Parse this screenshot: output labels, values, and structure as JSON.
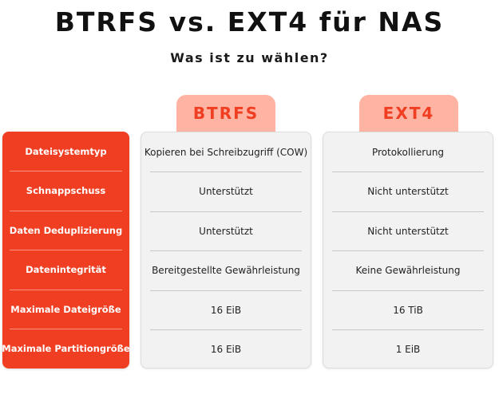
{
  "header": {
    "title": "BTRFS vs. EXT4 für NAS",
    "subtitle": "Was ist zu wählen?"
  },
  "columns": [
    {
      "label": "BTRFS",
      "color": "#ef3e22",
      "background": "#ffb3a3"
    },
    {
      "label": "EXT4",
      "color": "#ef3e22",
      "background": "#ffb3a3"
    }
  ],
  "rows": [
    {
      "label": "Dateisystemtyp",
      "btrfs": "Kopieren bei Schreibzugriff (COW)",
      "ext4": "Protokollierung"
    },
    {
      "label": "Schnappschuss",
      "btrfs": "Unterstützt",
      "ext4": "Nicht unterstützt"
    },
    {
      "label": "Daten Deduplizierung",
      "btrfs": "Unterstützt",
      "ext4": "Nicht unterstützt"
    },
    {
      "label": "Datenintegrität",
      "btrfs": "Bereitgestellte Gewährleistung",
      "ext4": "Keine Gewährleistung"
    },
    {
      "label": "Maximale Dateigröße",
      "btrfs": "16 EiB",
      "ext4": "16 TiB"
    },
    {
      "label": "Maximale Partitiongröße",
      "btrfs": "16 EiB",
      "ext4": "1 EiB"
    }
  ],
  "colors": {
    "accent": "#ef3e22",
    "header_tint": "#ffb3a3",
    "panel_background": "#f2f2f2"
  }
}
